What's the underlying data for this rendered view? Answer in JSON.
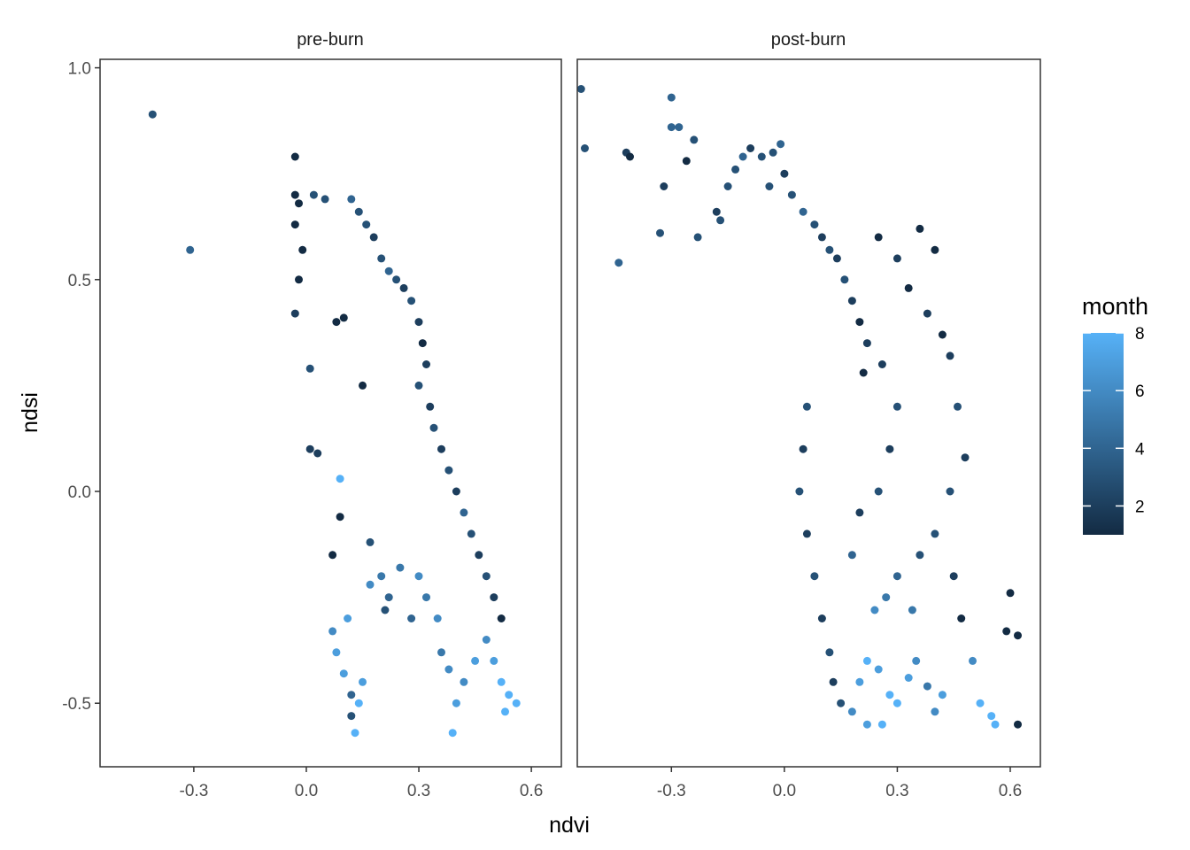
{
  "chart_data": {
    "type": "scatter",
    "xlabel": "ndvi",
    "ylabel": "ndsi",
    "xlim": [
      -0.55,
      0.68
    ],
    "ylim": [
      -0.65,
      1.02
    ],
    "x_ticks": [
      -0.3,
      0.0,
      0.3,
      0.6
    ],
    "x_tick_labels": [
      "-0.3",
      "0.0",
      "0.3",
      "0.6"
    ],
    "y_ticks": [
      -0.5,
      0.0,
      0.5,
      1.0
    ],
    "y_tick_labels": [
      "-0.5",
      "0.0",
      "0.5",
      "1.0"
    ],
    "grid": false,
    "color_scale": {
      "title": "month",
      "min": 1,
      "max": 8,
      "low_color": "#132b43",
      "high_color": "#56b1f7",
      "ticks": [
        2,
        4,
        6,
        8
      ],
      "tick_labels": [
        "2",
        "4",
        "6",
        "8"
      ],
      "placement": "right"
    },
    "panels": [
      {
        "label": "pre-burn",
        "points": [
          {
            "x": -0.41,
            "y": 0.89,
            "month": 3
          },
          {
            "x": -0.31,
            "y": 0.57,
            "month": 4
          },
          {
            "x": -0.03,
            "y": 0.79,
            "month": 1
          },
          {
            "x": -0.03,
            "y": 0.7,
            "month": 1
          },
          {
            "x": -0.02,
            "y": 0.68,
            "month": 1
          },
          {
            "x": -0.03,
            "y": 0.63,
            "month": 1
          },
          {
            "x": -0.01,
            "y": 0.57,
            "month": 1
          },
          {
            "x": -0.02,
            "y": 0.5,
            "month": 1
          },
          {
            "x": -0.03,
            "y": 0.42,
            "month": 2
          },
          {
            "x": 0.01,
            "y": 0.29,
            "month": 3
          },
          {
            "x": 0.01,
            "y": 0.1,
            "month": 2
          },
          {
            "x": 0.03,
            "y": 0.09,
            "month": 2
          },
          {
            "x": 0.02,
            "y": 0.7,
            "month": 3
          },
          {
            "x": 0.05,
            "y": 0.69,
            "month": 3
          },
          {
            "x": 0.08,
            "y": 0.4,
            "month": 1
          },
          {
            "x": 0.1,
            "y": 0.41,
            "month": 1
          },
          {
            "x": 0.09,
            "y": 0.03,
            "month": 8
          },
          {
            "x": 0.09,
            "y": -0.06,
            "month": 1
          },
          {
            "x": 0.07,
            "y": -0.15,
            "month": 1
          },
          {
            "x": 0.15,
            "y": 0.25,
            "month": 1
          },
          {
            "x": 0.12,
            "y": 0.69,
            "month": 4
          },
          {
            "x": 0.14,
            "y": 0.66,
            "month": 3
          },
          {
            "x": 0.16,
            "y": 0.63,
            "month": 3
          },
          {
            "x": 0.18,
            "y": 0.6,
            "month": 2
          },
          {
            "x": 0.2,
            "y": 0.55,
            "month": 3
          },
          {
            "x": 0.22,
            "y": 0.52,
            "month": 4
          },
          {
            "x": 0.24,
            "y": 0.5,
            "month": 3
          },
          {
            "x": 0.26,
            "y": 0.48,
            "month": 2
          },
          {
            "x": 0.28,
            "y": 0.45,
            "month": 3
          },
          {
            "x": 0.3,
            "y": 0.4,
            "month": 2
          },
          {
            "x": 0.31,
            "y": 0.35,
            "month": 1
          },
          {
            "x": 0.32,
            "y": 0.3,
            "month": 2
          },
          {
            "x": 0.3,
            "y": 0.25,
            "month": 3
          },
          {
            "x": 0.33,
            "y": 0.2,
            "month": 2
          },
          {
            "x": 0.34,
            "y": 0.15,
            "month": 3
          },
          {
            "x": 0.36,
            "y": 0.1,
            "month": 2
          },
          {
            "x": 0.38,
            "y": 0.05,
            "month": 3
          },
          {
            "x": 0.4,
            "y": 0.0,
            "month": 2
          },
          {
            "x": 0.42,
            "y": -0.05,
            "month": 4
          },
          {
            "x": 0.44,
            "y": -0.1,
            "month": 3
          },
          {
            "x": 0.46,
            "y": -0.15,
            "month": 2
          },
          {
            "x": 0.48,
            "y": -0.2,
            "month": 3
          },
          {
            "x": 0.5,
            "y": -0.25,
            "month": 2
          },
          {
            "x": 0.52,
            "y": -0.3,
            "month": 1
          },
          {
            "x": 0.48,
            "y": -0.35,
            "month": 6
          },
          {
            "x": 0.5,
            "y": -0.4,
            "month": 7
          },
          {
            "x": 0.52,
            "y": -0.45,
            "month": 8
          },
          {
            "x": 0.54,
            "y": -0.48,
            "month": 8
          },
          {
            "x": 0.56,
            "y": -0.5,
            "month": 8
          },
          {
            "x": 0.53,
            "y": -0.52,
            "month": 8
          },
          {
            "x": 0.45,
            "y": -0.4,
            "month": 7
          },
          {
            "x": 0.42,
            "y": -0.45,
            "month": 6
          },
          {
            "x": 0.4,
            "y": -0.5,
            "month": 7
          },
          {
            "x": 0.38,
            "y": -0.42,
            "month": 6
          },
          {
            "x": 0.36,
            "y": -0.38,
            "month": 5
          },
          {
            "x": 0.39,
            "y": -0.57,
            "month": 8
          },
          {
            "x": 0.35,
            "y": -0.3,
            "month": 6
          },
          {
            "x": 0.32,
            "y": -0.25,
            "month": 5
          },
          {
            "x": 0.3,
            "y": -0.2,
            "month": 6
          },
          {
            "x": 0.28,
            "y": -0.3,
            "month": 4
          },
          {
            "x": 0.25,
            "y": -0.18,
            "month": 5
          },
          {
            "x": 0.22,
            "y": -0.25,
            "month": 4
          },
          {
            "x": 0.2,
            "y": -0.2,
            "month": 5
          },
          {
            "x": 0.17,
            "y": -0.22,
            "month": 6
          },
          {
            "x": 0.17,
            "y": -0.12,
            "month": 3
          },
          {
            "x": 0.21,
            "y": -0.28,
            "month": 3
          },
          {
            "x": 0.07,
            "y": -0.33,
            "month": 6
          },
          {
            "x": 0.08,
            "y": -0.38,
            "month": 7
          },
          {
            "x": 0.1,
            "y": -0.43,
            "month": 7
          },
          {
            "x": 0.11,
            "y": -0.3,
            "month": 7
          },
          {
            "x": 0.12,
            "y": -0.48,
            "month": 4
          },
          {
            "x": 0.12,
            "y": -0.53,
            "month": 3
          },
          {
            "x": 0.13,
            "y": -0.57,
            "month": 8
          },
          {
            "x": 0.14,
            "y": -0.5,
            "month": 8
          },
          {
            "x": 0.15,
            "y": -0.45,
            "month": 7
          }
        ]
      },
      {
        "label": "post-burn",
        "points": [
          {
            "x": -0.54,
            "y": 0.95,
            "month": 3
          },
          {
            "x": -0.53,
            "y": 0.81,
            "month": 3
          },
          {
            "x": -0.44,
            "y": 0.54,
            "month": 4
          },
          {
            "x": -0.42,
            "y": 0.8,
            "month": 2
          },
          {
            "x": -0.41,
            "y": 0.79,
            "month": 1
          },
          {
            "x": -0.32,
            "y": 0.72,
            "month": 2
          },
          {
            "x": -0.3,
            "y": 0.93,
            "month": 4
          },
          {
            "x": -0.3,
            "y": 0.86,
            "month": 4
          },
          {
            "x": -0.33,
            "y": 0.61,
            "month": 3
          },
          {
            "x": -0.28,
            "y": 0.86,
            "month": 4
          },
          {
            "x": -0.26,
            "y": 0.78,
            "month": 1
          },
          {
            "x": -0.24,
            "y": 0.83,
            "month": 3
          },
          {
            "x": -0.23,
            "y": 0.6,
            "month": 3
          },
          {
            "x": -0.18,
            "y": 0.66,
            "month": 2
          },
          {
            "x": -0.17,
            "y": 0.64,
            "month": 3
          },
          {
            "x": -0.15,
            "y": 0.72,
            "month": 3
          },
          {
            "x": -0.13,
            "y": 0.76,
            "month": 3
          },
          {
            "x": -0.11,
            "y": 0.79,
            "month": 4
          },
          {
            "x": -0.09,
            "y": 0.81,
            "month": 2
          },
          {
            "x": -0.06,
            "y": 0.79,
            "month": 3
          },
          {
            "x": -0.04,
            "y": 0.72,
            "month": 3
          },
          {
            "x": -0.03,
            "y": 0.8,
            "month": 3
          },
          {
            "x": -0.01,
            "y": 0.82,
            "month": 4
          },
          {
            "x": 0.0,
            "y": 0.75,
            "month": 2
          },
          {
            "x": 0.02,
            "y": 0.7,
            "month": 3
          },
          {
            "x": 0.05,
            "y": 0.66,
            "month": 4
          },
          {
            "x": 0.08,
            "y": 0.63,
            "month": 3
          },
          {
            "x": 0.1,
            "y": 0.6,
            "month": 2
          },
          {
            "x": 0.12,
            "y": 0.57,
            "month": 3
          },
          {
            "x": 0.14,
            "y": 0.55,
            "month": 2
          },
          {
            "x": 0.16,
            "y": 0.5,
            "month": 3
          },
          {
            "x": 0.18,
            "y": 0.45,
            "month": 2
          },
          {
            "x": 0.2,
            "y": 0.4,
            "month": 1
          },
          {
            "x": 0.22,
            "y": 0.35,
            "month": 2
          },
          {
            "x": 0.25,
            "y": 0.6,
            "month": 1
          },
          {
            "x": 0.3,
            "y": 0.55,
            "month": 2
          },
          {
            "x": 0.33,
            "y": 0.48,
            "month": 1
          },
          {
            "x": 0.36,
            "y": 0.62,
            "month": 1
          },
          {
            "x": 0.4,
            "y": 0.57,
            "month": 1
          },
          {
            "x": 0.38,
            "y": 0.42,
            "month": 2
          },
          {
            "x": 0.42,
            "y": 0.37,
            "month": 1
          },
          {
            "x": 0.44,
            "y": 0.32,
            "month": 2
          },
          {
            "x": 0.46,
            "y": 0.2,
            "month": 3
          },
          {
            "x": 0.48,
            "y": 0.08,
            "month": 2
          },
          {
            "x": 0.44,
            "y": 0.0,
            "month": 3
          },
          {
            "x": 0.4,
            "y": -0.1,
            "month": 3
          },
          {
            "x": 0.45,
            "y": -0.2,
            "month": 2
          },
          {
            "x": 0.47,
            "y": -0.3,
            "month": 1
          },
          {
            "x": 0.5,
            "y": -0.4,
            "month": 6
          },
          {
            "x": 0.52,
            "y": -0.5,
            "month": 8
          },
          {
            "x": 0.55,
            "y": -0.53,
            "month": 8
          },
          {
            "x": 0.56,
            "y": -0.55,
            "month": 8
          },
          {
            "x": 0.6,
            "y": -0.24,
            "month": 1
          },
          {
            "x": 0.59,
            "y": -0.33,
            "month": 1
          },
          {
            "x": 0.62,
            "y": -0.34,
            "month": 1
          },
          {
            "x": 0.62,
            "y": -0.55,
            "month": 1
          },
          {
            "x": 0.06,
            "y": 0.2,
            "month": 3
          },
          {
            "x": 0.05,
            "y": 0.1,
            "month": 2
          },
          {
            "x": 0.04,
            "y": 0.0,
            "month": 3
          },
          {
            "x": 0.06,
            "y": -0.1,
            "month": 2
          },
          {
            "x": 0.08,
            "y": -0.2,
            "month": 3
          },
          {
            "x": 0.1,
            "y": -0.3,
            "month": 2
          },
          {
            "x": 0.12,
            "y": -0.38,
            "month": 3
          },
          {
            "x": 0.13,
            "y": -0.45,
            "month": 2
          },
          {
            "x": 0.15,
            "y": -0.5,
            "month": 3
          },
          {
            "x": 0.18,
            "y": -0.52,
            "month": 6
          },
          {
            "x": 0.2,
            "y": -0.45,
            "month": 7
          },
          {
            "x": 0.22,
            "y": -0.4,
            "month": 8
          },
          {
            "x": 0.25,
            "y": -0.42,
            "month": 7
          },
          {
            "x": 0.28,
            "y": -0.48,
            "month": 8
          },
          {
            "x": 0.3,
            "y": -0.5,
            "month": 8
          },
          {
            "x": 0.33,
            "y": -0.44,
            "month": 7
          },
          {
            "x": 0.35,
            "y": -0.4,
            "month": 6
          },
          {
            "x": 0.38,
            "y": -0.46,
            "month": 5
          },
          {
            "x": 0.4,
            "y": -0.52,
            "month": 6
          },
          {
            "x": 0.42,
            "y": -0.48,
            "month": 7
          },
          {
            "x": 0.22,
            "y": -0.55,
            "month": 7
          },
          {
            "x": 0.26,
            "y": -0.55,
            "month": 8
          },
          {
            "x": 0.24,
            "y": -0.28,
            "month": 6
          },
          {
            "x": 0.27,
            "y": -0.25,
            "month": 5
          },
          {
            "x": 0.3,
            "y": -0.2,
            "month": 4
          },
          {
            "x": 0.34,
            "y": -0.28,
            "month": 5
          },
          {
            "x": 0.36,
            "y": -0.15,
            "month": 3
          },
          {
            "x": 0.18,
            "y": -0.15,
            "month": 4
          },
          {
            "x": 0.2,
            "y": -0.05,
            "month": 2
          },
          {
            "x": 0.25,
            "y": 0.0,
            "month": 3
          },
          {
            "x": 0.28,
            "y": 0.1,
            "month": 2
          },
          {
            "x": 0.3,
            "y": 0.2,
            "month": 3
          },
          {
            "x": 0.26,
            "y": 0.3,
            "month": 2
          },
          {
            "x": 0.21,
            "y": 0.28,
            "month": 1
          }
        ]
      }
    ]
  }
}
